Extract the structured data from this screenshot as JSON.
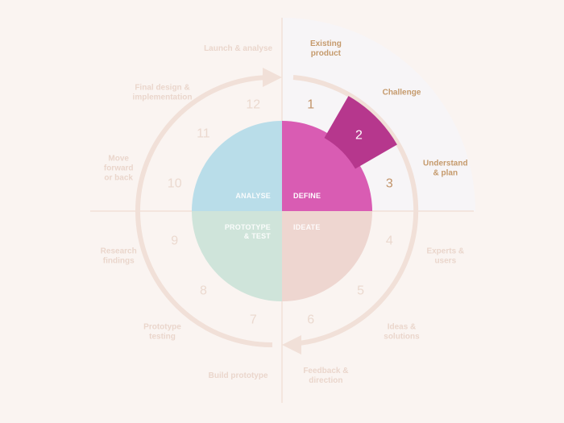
{
  "colors": {
    "background": "#faf4f1",
    "quadrant_highlight": "#f7f5f7",
    "axis_line": "#f0dcd2",
    "ring": "#f1e0d8",
    "analyse": "#b9dde9",
    "define": "#d95cb3",
    "prototype": "#cfe4da",
    "ideate": "#eed6d0",
    "wedge": "#b6378d",
    "label_faded": "#ead6cc",
    "label_active": "#c59a6c",
    "number_faded": "#ebd9cf",
    "number_active": "#c2946a",
    "quadrant_label_light": "#ffffff"
  },
  "quadrants": {
    "analyse": "ANALYSE",
    "define": "DEFINE",
    "prototype_line1": "PROTOTYPE",
    "prototype_line2": "& TEST",
    "ideate": "IDEATE"
  },
  "steps": [
    {
      "n": "1",
      "active": true
    },
    {
      "n": "2",
      "active": true
    },
    {
      "n": "3",
      "active": true
    },
    {
      "n": "4",
      "active": false
    },
    {
      "n": "5",
      "active": false
    },
    {
      "n": "6",
      "active": false
    },
    {
      "n": "7",
      "active": false
    },
    {
      "n": "8",
      "active": false
    },
    {
      "n": "9",
      "active": false
    },
    {
      "n": "10",
      "active": false
    },
    {
      "n": "11",
      "active": false
    },
    {
      "n": "12",
      "active": false
    }
  ],
  "outer_labels": [
    {
      "lines": [
        "Existing",
        "product"
      ],
      "active": true
    },
    {
      "lines": [
        "Challenge"
      ],
      "active": true
    },
    {
      "lines": [
        "Understand",
        "& plan"
      ],
      "active": true
    },
    {
      "lines": [
        "Experts &",
        "users"
      ],
      "active": false
    },
    {
      "lines": [
        "Ideas &",
        "solutions"
      ],
      "active": false
    },
    {
      "lines": [
        "Feedback &",
        "direction"
      ],
      "active": false
    },
    {
      "lines": [
        "Build prototype"
      ],
      "active": false
    },
    {
      "lines": [
        "Prototype",
        "testing"
      ],
      "active": false
    },
    {
      "lines": [
        "Research",
        "findings"
      ],
      "active": false
    },
    {
      "lines": [
        "Move",
        "forward",
        "or back"
      ],
      "active": false
    },
    {
      "lines": [
        "Final design &",
        "implementation"
      ],
      "active": false
    },
    {
      "lines": [
        "Launch & analyse"
      ],
      "active": false
    }
  ]
}
